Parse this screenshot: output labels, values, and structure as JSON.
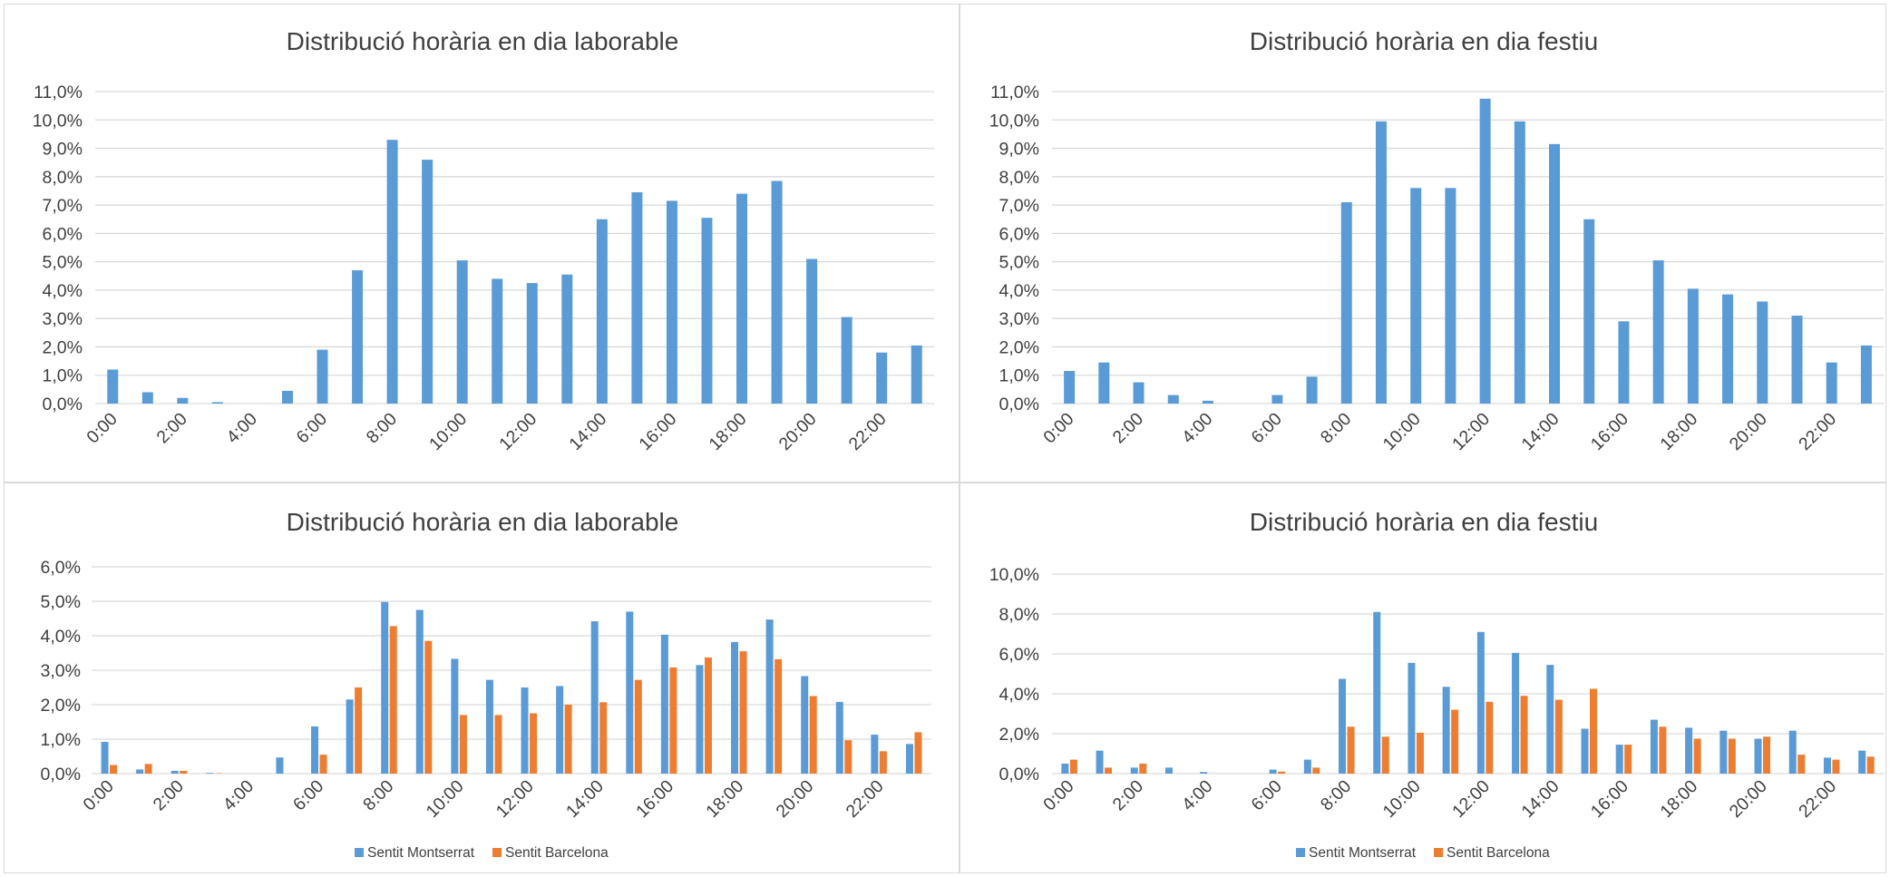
{
  "colors": {
    "montserrat": "#5b9bd5",
    "barcelona": "#ed7d31",
    "grid": "#d9d9d9",
    "text": "#404040"
  },
  "chart_data": [
    {
      "type": "bar",
      "title": "Distribució horària en dia laborable",
      "categories": [
        "0:00",
        "1:00",
        "2:00",
        "3:00",
        "4:00",
        "5:00",
        "6:00",
        "7:00",
        "8:00",
        "9:00",
        "10:00",
        "11:00",
        "12:00",
        "13:00",
        "14:00",
        "15:00",
        "16:00",
        "17:00",
        "18:00",
        "19:00",
        "20:00",
        "21:00",
        "22:00",
        "23:00"
      ],
      "x_tick_labels": [
        "0:00",
        "2:00",
        "4:00",
        "6:00",
        "8:00",
        "10:00",
        "12:00",
        "14:00",
        "16:00",
        "18:00",
        "20:00",
        "22:00"
      ],
      "y_tick_labels": [
        "0,0%",
        "1,0%",
        "2,0%",
        "3,0%",
        "4,0%",
        "5,0%",
        "6,0%",
        "7,0%",
        "8,0%",
        "9,0%",
        "10,0%",
        "11,0%"
      ],
      "ylim": [
        0,
        11
      ],
      "y_unit": "%",
      "grid": true,
      "legend": "none",
      "series": [
        {
          "values": [
            1.2,
            0.4,
            0.2,
            0.05,
            0.0,
            0.45,
            1.9,
            4.7,
            9.3,
            8.6,
            5.05,
            4.4,
            4.25,
            4.55,
            6.5,
            7.45,
            7.15,
            6.55,
            7.4,
            7.85,
            5.1,
            3.05,
            1.8,
            2.05
          ]
        }
      ]
    },
    {
      "type": "bar",
      "title": "Distribució horària en dia festiu",
      "categories": [
        "0:00",
        "1:00",
        "2:00",
        "3:00",
        "4:00",
        "5:00",
        "6:00",
        "7:00",
        "8:00",
        "9:00",
        "10:00",
        "11:00",
        "12:00",
        "13:00",
        "14:00",
        "15:00",
        "16:00",
        "17:00",
        "18:00",
        "19:00",
        "20:00",
        "21:00",
        "22:00",
        "23:00"
      ],
      "x_tick_labels": [
        "0:00",
        "2:00",
        "4:00",
        "6:00",
        "8:00",
        "10:00",
        "12:00",
        "14:00",
        "16:00",
        "18:00",
        "20:00",
        "22:00"
      ],
      "y_tick_labels": [
        "0,0%",
        "1,0%",
        "2,0%",
        "3,0%",
        "4,0%",
        "5,0%",
        "6,0%",
        "7,0%",
        "8,0%",
        "9,0%",
        "10,0%",
        "11,0%"
      ],
      "ylim": [
        0,
        11
      ],
      "y_unit": "%",
      "grid": true,
      "legend": "none",
      "series": [
        {
          "values": [
            1.15,
            1.45,
            0.75,
            0.3,
            0.1,
            0.0,
            0.3,
            0.95,
            7.1,
            9.95,
            7.6,
            7.6,
            10.75,
            9.95,
            9.15,
            6.5,
            2.9,
            5.05,
            4.05,
            3.85,
            3.6,
            3.1,
            1.45,
            2.05
          ]
        }
      ]
    },
    {
      "type": "bar",
      "title": "Distribució horària en dia laborable",
      "categories": [
        "0:00",
        "1:00",
        "2:00",
        "3:00",
        "4:00",
        "5:00",
        "6:00",
        "7:00",
        "8:00",
        "9:00",
        "10:00",
        "11:00",
        "12:00",
        "13:00",
        "14:00",
        "15:00",
        "16:00",
        "17:00",
        "18:00",
        "19:00",
        "20:00",
        "21:00",
        "22:00",
        "23:00"
      ],
      "x_tick_labels": [
        "0:00",
        "2:00",
        "4:00",
        "6:00",
        "8:00",
        "10:00",
        "12:00",
        "14:00",
        "16:00",
        "18:00",
        "20:00",
        "22:00"
      ],
      "y_tick_labels": [
        "0,0%",
        "1,0%",
        "2,0%",
        "3,0%",
        "4,0%",
        "5,0%",
        "6,0%"
      ],
      "ylim": [
        0,
        6
      ],
      "y_unit": "%",
      "grid": true,
      "legend": "bottom-center",
      "series": [
        {
          "name": "Sentit Montserrat",
          "values": [
            0.92,
            0.12,
            0.08,
            0.02,
            0.0,
            0.47,
            1.37,
            2.15,
            4.98,
            4.75,
            3.33,
            2.72,
            2.5,
            2.54,
            4.42,
            4.7,
            4.03,
            3.15,
            3.82,
            4.47,
            2.83,
            2.08,
            1.13,
            0.86
          ]
        },
        {
          "name": "Sentit Barcelona",
          "values": [
            0.25,
            0.28,
            0.08,
            0.01,
            0.0,
            0.0,
            0.55,
            2.5,
            4.28,
            3.85,
            1.7,
            1.7,
            1.75,
            2.0,
            2.07,
            2.72,
            3.08,
            3.37,
            3.55,
            3.32,
            2.25,
            0.97,
            0.65,
            1.2
          ]
        }
      ]
    },
    {
      "type": "bar",
      "title": "Distribució horària en dia festiu",
      "categories": [
        "0:00",
        "1:00",
        "2:00",
        "3:00",
        "4:00",
        "5:00",
        "6:00",
        "7:00",
        "8:00",
        "9:00",
        "10:00",
        "11:00",
        "12:00",
        "13:00",
        "14:00",
        "15:00",
        "16:00",
        "17:00",
        "18:00",
        "19:00",
        "20:00",
        "21:00",
        "22:00",
        "23:00"
      ],
      "x_tick_labels": [
        "0:00",
        "2:00",
        "4:00",
        "6:00",
        "8:00",
        "10:00",
        "12:00",
        "14:00",
        "16:00",
        "18:00",
        "20:00",
        "22:00"
      ],
      "y_tick_labels": [
        "0,0%",
        "2,0%",
        "4,0%",
        "6,0%",
        "8,0%",
        "10,0%"
      ],
      "ylim": [
        0,
        10
      ],
      "y_unit": "%",
      "grid": true,
      "legend": "bottom-center",
      "series": [
        {
          "name": "Sentit Montserrat",
          "values": [
            0.5,
            1.15,
            0.3,
            0.3,
            0.08,
            0.0,
            0.2,
            0.7,
            4.75,
            8.1,
            5.55,
            4.35,
            7.1,
            6.05,
            5.45,
            2.25,
            1.45,
            2.7,
            2.3,
            2.15,
            1.75,
            2.15,
            0.8,
            1.15
          ]
        },
        {
          "name": "Sentit Barcelona",
          "values": [
            0.7,
            0.3,
            0.5,
            0.0,
            0.0,
            0.0,
            0.1,
            0.3,
            2.35,
            1.85,
            2.05,
            3.2,
            3.6,
            3.9,
            3.7,
            4.25,
            1.45,
            2.35,
            1.75,
            1.75,
            1.85,
            0.95,
            0.7,
            0.85
          ]
        }
      ]
    }
  ]
}
